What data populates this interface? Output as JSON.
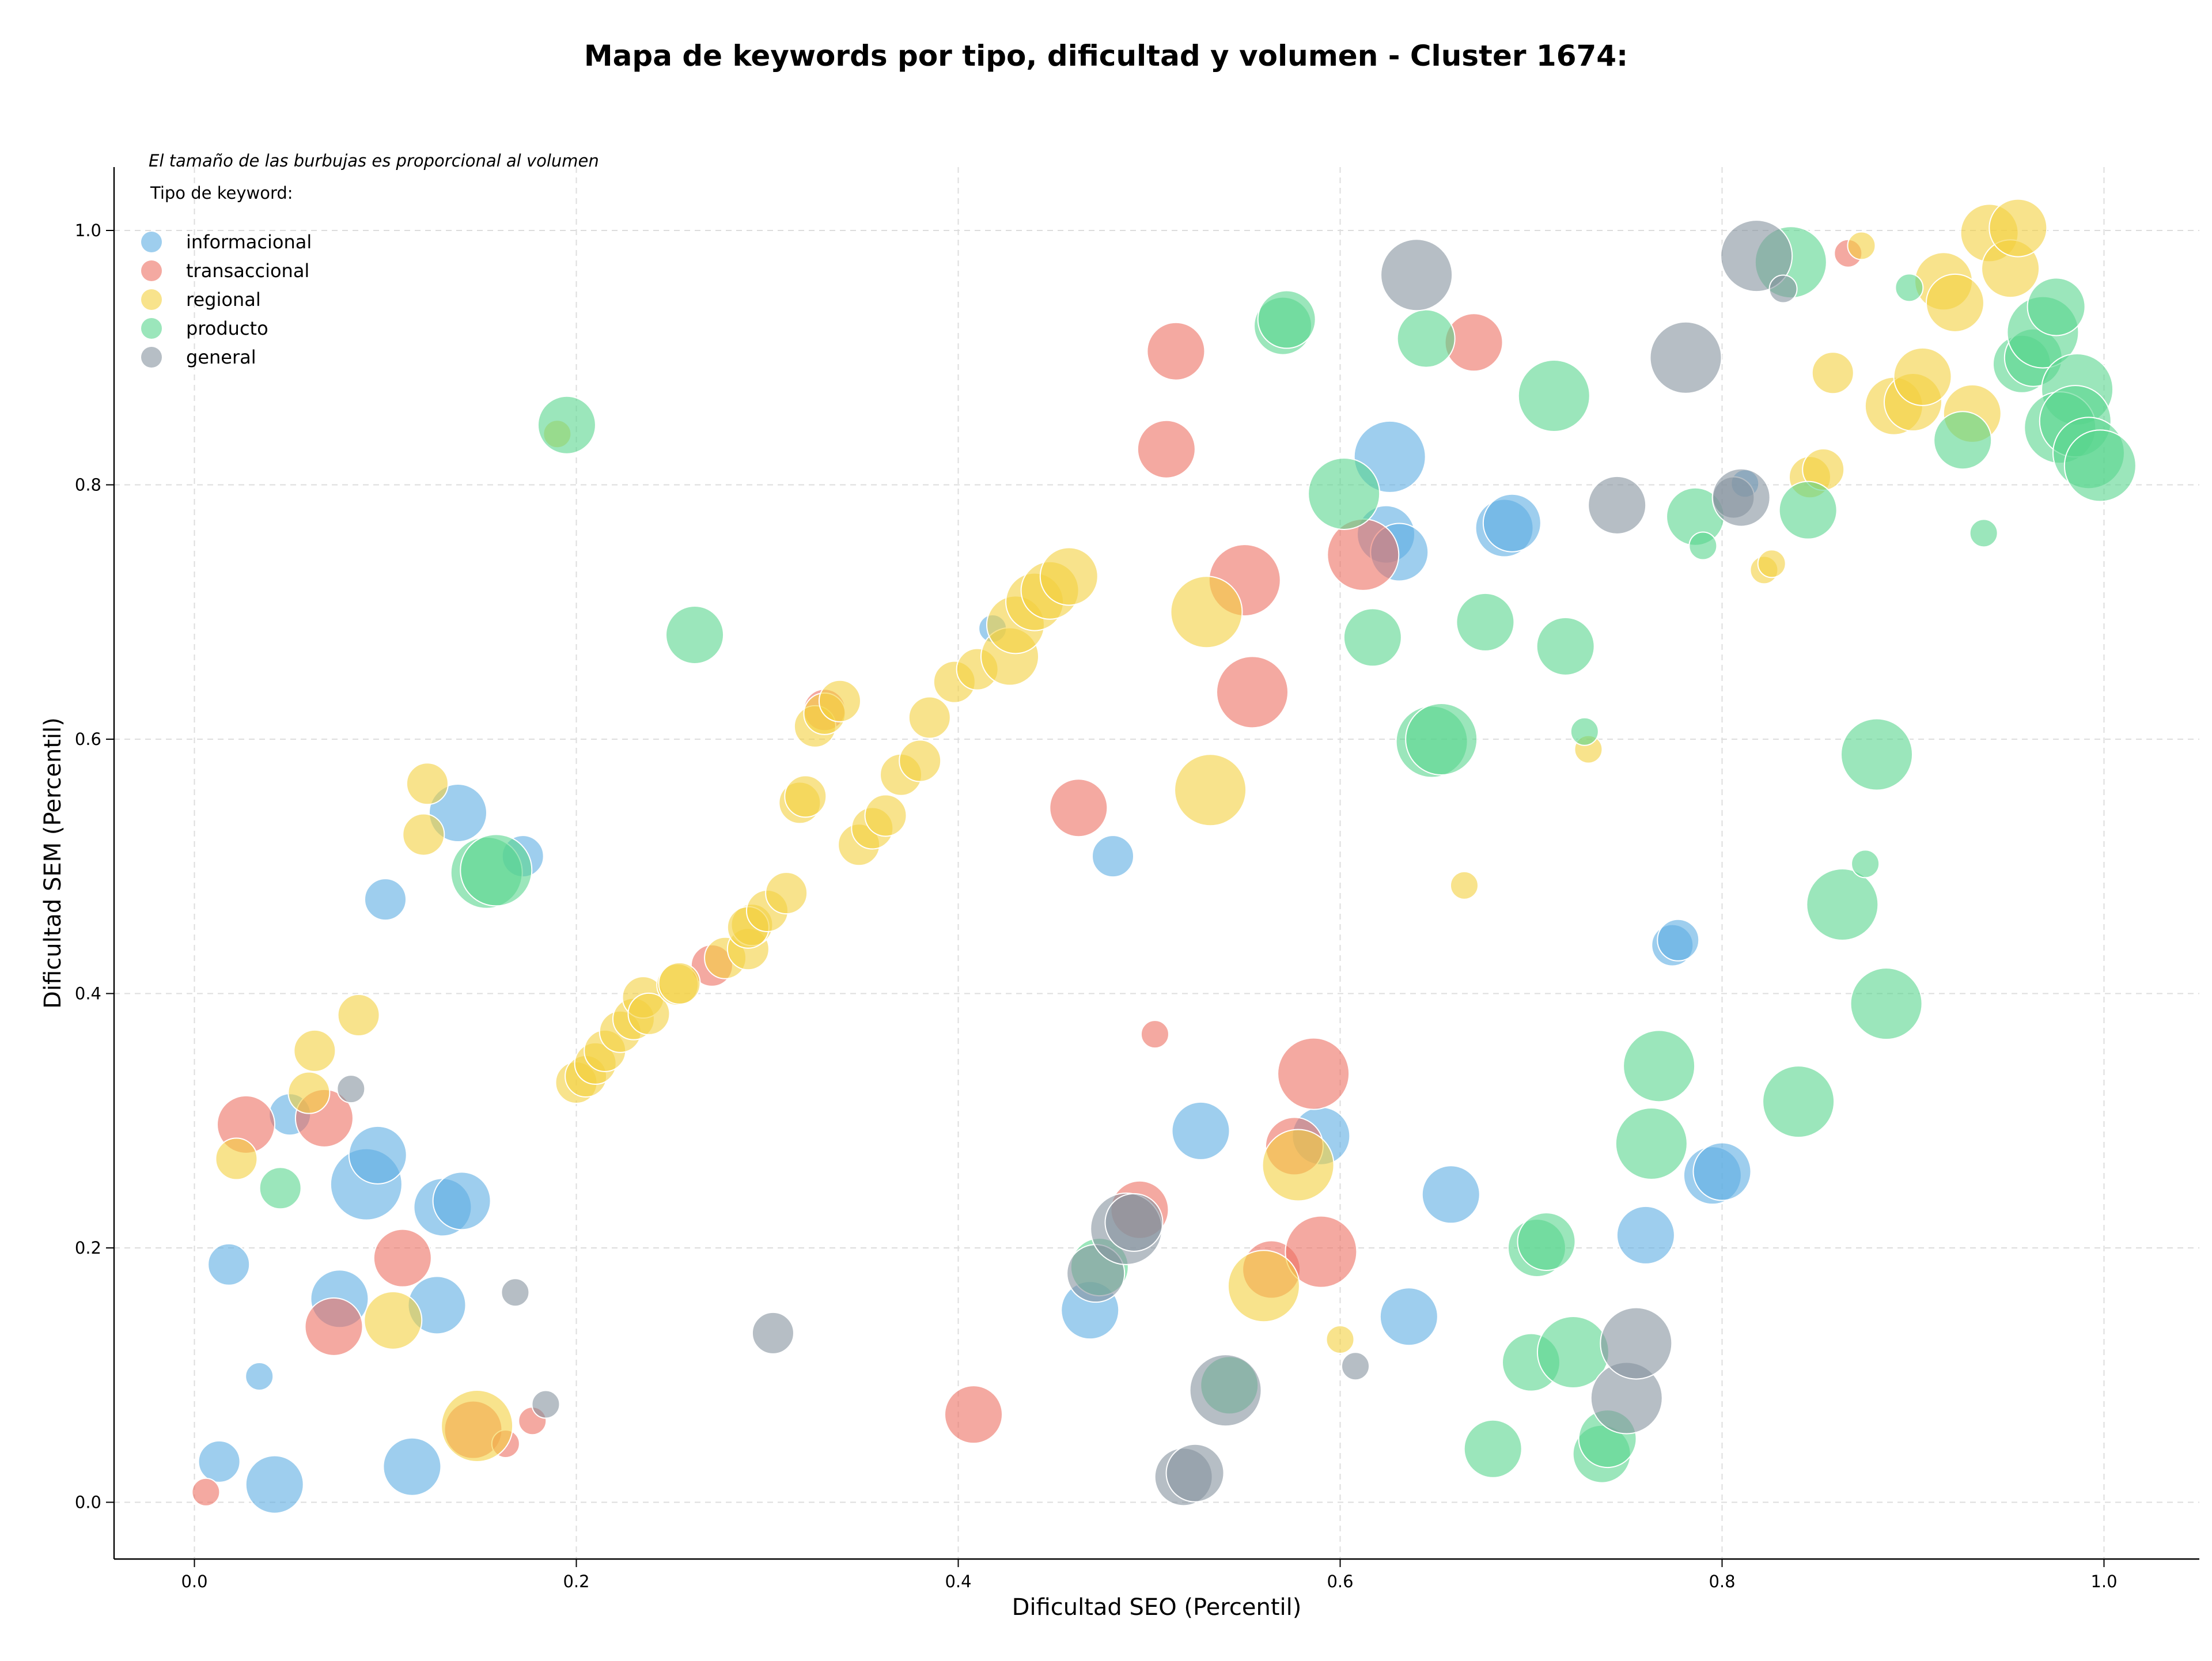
{
  "chart_data": {
    "type": "scatter",
    "title": "Mapa de keywords por tipo, dificultad y volumen - Cluster 1674:",
    "subtitle": "El tamaño de las burbujas es proporcional al volumen",
    "xlabel": "Dificultad SEO (Percentil)",
    "ylabel": "Dificultad SEM (Percentil)",
    "xlim": [
      -0.042,
      1.048
    ],
    "ylim": [
      -0.042,
      1.048
    ],
    "xticks": [
      "0.0",
      "0.2",
      "0.4",
      "0.6",
      "0.8",
      "1.0"
    ],
    "yticks": [
      "0.0",
      "0.2",
      "0.4",
      "0.6",
      "0.8",
      "1.0"
    ],
    "grid": true,
    "legend_title": "Tipo de keyword:",
    "legend_position": "top-left",
    "series": [
      {
        "name": "informacional",
        "color": "#5DADE2",
        "points": [
          [
            0.042,
            0.014,
            3
          ],
          [
            0.013,
            0.032,
            2
          ],
          [
            0.034,
            0.099,
            1
          ],
          [
            0.018,
            0.187,
            2
          ],
          [
            0.076,
            0.16,
            3
          ],
          [
            0.127,
            0.155,
            3
          ],
          [
            0.114,
            0.028,
            3
          ],
          [
            0.09,
            0.25,
            4
          ],
          [
            0.096,
            0.273,
            3
          ],
          [
            0.13,
            0.232,
            3
          ],
          [
            0.14,
            0.237,
            3
          ],
          [
            0.05,
            0.305,
            2
          ],
          [
            0.1,
            0.474,
            2
          ],
          [
            0.138,
            0.542,
            3
          ],
          [
            0.172,
            0.508,
            2
          ],
          [
            0.418,
            0.687,
            1
          ],
          [
            0.481,
            0.508,
            2
          ],
          [
            0.527,
            0.292,
            3
          ],
          [
            0.469,
            0.151,
            3
          ],
          [
            0.59,
            0.288,
            3
          ],
          [
            0.636,
            0.146,
            3
          ],
          [
            0.658,
            0.242,
            3
          ],
          [
            0.626,
            0.822,
            4
          ],
          [
            0.624,
            0.761,
            3
          ],
          [
            0.631,
            0.747,
            3
          ],
          [
            0.686,
            0.766,
            3
          ],
          [
            0.69,
            0.77,
            3
          ],
          [
            0.774,
            0.438,
            2
          ],
          [
            0.777,
            0.442,
            2
          ],
          [
            0.76,
            0.21,
            3
          ],
          [
            0.795,
            0.257,
            3
          ],
          [
            0.8,
            0.26,
            3
          ],
          [
            0.812,
            0.801,
            1
          ]
        ]
      },
      {
        "name": "transaccional",
        "color": "#EC7063",
        "points": [
          [
            0.006,
            0.008,
            1
          ],
          [
            0.027,
            0.297,
            3
          ],
          [
            0.068,
            0.302,
            3
          ],
          [
            0.073,
            0.138,
            3
          ],
          [
            0.109,
            0.192,
            3
          ],
          [
            0.146,
            0.057,
            3
          ],
          [
            0.163,
            0.046,
            1
          ],
          [
            0.177,
            0.064,
            1
          ],
          [
            0.33,
            0.623,
            2
          ],
          [
            0.271,
            0.422,
            2
          ],
          [
            0.408,
            0.069,
            3
          ],
          [
            0.463,
            0.546,
            3
          ],
          [
            0.495,
            0.23,
            3
          ],
          [
            0.503,
            0.368,
            1
          ],
          [
            0.509,
            0.828,
            3
          ],
          [
            0.514,
            0.905,
            3
          ],
          [
            0.55,
            0.725,
            4
          ],
          [
            0.554,
            0.637,
            4
          ],
          [
            0.564,
            0.183,
            3
          ],
          [
            0.576,
            0.28,
            3
          ],
          [
            0.586,
            0.337,
            4
          ],
          [
            0.59,
            0.197,
            4
          ],
          [
            0.612,
            0.745,
            4
          ],
          [
            0.67,
            0.912,
            3
          ],
          [
            0.866,
            0.982,
            1
          ]
        ]
      },
      {
        "name": "regional",
        "color": "#F4D03F",
        "points": [
          [
            0.022,
            0.27,
            2
          ],
          [
            0.06,
            0.322,
            2
          ],
          [
            0.063,
            0.355,
            2
          ],
          [
            0.086,
            0.383,
            2
          ],
          [
            0.104,
            0.143,
            3
          ],
          [
            0.12,
            0.525,
            2
          ],
          [
            0.122,
            0.565,
            2
          ],
          [
            0.148,
            0.06,
            4
          ],
          [
            0.19,
            0.84,
            1
          ],
          [
            0.2,
            0.33,
            2
          ],
          [
            0.205,
            0.335,
            2
          ],
          [
            0.21,
            0.345,
            2
          ],
          [
            0.215,
            0.355,
            2
          ],
          [
            0.223,
            0.37,
            2
          ],
          [
            0.23,
            0.38,
            2
          ],
          [
            0.235,
            0.397,
            2
          ],
          [
            0.238,
            0.384,
            2
          ],
          [
            0.253,
            0.407,
            2
          ],
          [
            0.254,
            0.408,
            2
          ],
          [
            0.278,
            0.428,
            2
          ],
          [
            0.29,
            0.435,
            2
          ],
          [
            0.292,
            0.454,
            2
          ],
          [
            0.29,
            0.452,
            2
          ],
          [
            0.3,
            0.465,
            2
          ],
          [
            0.31,
            0.479,
            2
          ],
          [
            0.317,
            0.55,
            2
          ],
          [
            0.32,
            0.555,
            2
          ],
          [
            0.325,
            0.61,
            2
          ],
          [
            0.33,
            0.62,
            2
          ],
          [
            0.338,
            0.63,
            2
          ],
          [
            0.348,
            0.517,
            2
          ],
          [
            0.355,
            0.53,
            2
          ],
          [
            0.362,
            0.54,
            2
          ],
          [
            0.37,
            0.572,
            2
          ],
          [
            0.38,
            0.583,
            2
          ],
          [
            0.385,
            0.617,
            2
          ],
          [
            0.398,
            0.645,
            2
          ],
          [
            0.41,
            0.655,
            2
          ],
          [
            0.427,
            0.665,
            3
          ],
          [
            0.43,
            0.69,
            3
          ],
          [
            0.44,
            0.708,
            3
          ],
          [
            0.448,
            0.717,
            3
          ],
          [
            0.458,
            0.728,
            3
          ],
          [
            0.53,
            0.7,
            4
          ],
          [
            0.532,
            0.56,
            4
          ],
          [
            0.56,
            0.17,
            4
          ],
          [
            0.578,
            0.265,
            4
          ],
          [
            0.6,
            0.128,
            1
          ],
          [
            0.665,
            0.485,
            1
          ],
          [
            0.73,
            0.592,
            1
          ],
          [
            0.822,
            0.733,
            1
          ],
          [
            0.826,
            0.738,
            1
          ],
          [
            0.846,
            0.806,
            2
          ],
          [
            0.853,
            0.812,
            2
          ],
          [
            0.858,
            0.888,
            2
          ],
          [
            0.873,
            0.988,
            1
          ],
          [
            0.89,
            0.862,
            3
          ],
          [
            0.9,
            0.865,
            3
          ],
          [
            0.905,
            0.885,
            3
          ],
          [
            0.916,
            0.96,
            3
          ],
          [
            0.922,
            0.943,
            3
          ],
          [
            0.931,
            0.856,
            3
          ],
          [
            0.94,
            0.998,
            3
          ],
          [
            0.951,
            0.97,
            3
          ],
          [
            0.955,
            1.002,
            3
          ]
        ]
      },
      {
        "name": "producto",
        "color": "#58D68D",
        "points": [
          [
            0.045,
            0.247,
            2
          ],
          [
            0.153,
            0.495,
            4
          ],
          [
            0.158,
            0.497,
            4
          ],
          [
            0.195,
            0.847,
            3
          ],
          [
            0.262,
            0.682,
            3
          ],
          [
            0.474,
            0.185,
            3
          ],
          [
            0.542,
            0.092,
            3
          ],
          [
            0.57,
            0.925,
            3
          ],
          [
            0.572,
            0.93,
            3
          ],
          [
            0.602,
            0.793,
            4
          ],
          [
            0.617,
            0.68,
            3
          ],
          [
            0.645,
            0.915,
            3
          ],
          [
            0.648,
            0.598,
            4
          ],
          [
            0.653,
            0.6,
            4
          ],
          [
            0.676,
            0.692,
            3
          ],
          [
            0.68,
            0.042,
            3
          ],
          [
            0.7,
            0.11,
            3
          ],
          [
            0.703,
            0.2,
            3
          ],
          [
            0.708,
            0.205,
            3
          ],
          [
            0.712,
            0.87,
            4
          ],
          [
            0.718,
            0.673,
            3
          ],
          [
            0.722,
            0.118,
            4
          ],
          [
            0.728,
            0.606,
            1
          ],
          [
            0.737,
            0.038,
            3
          ],
          [
            0.74,
            0.05,
            3
          ],
          [
            0.763,
            0.282,
            4
          ],
          [
            0.767,
            0.343,
            4
          ],
          [
            0.786,
            0.775,
            3
          ],
          [
            0.79,
            0.752,
            1
          ],
          [
            0.836,
            0.975,
            4
          ],
          [
            0.84,
            0.315,
            4
          ],
          [
            0.845,
            0.78,
            3
          ],
          [
            0.863,
            0.47,
            4
          ],
          [
            0.875,
            0.502,
            1
          ],
          [
            0.881,
            0.588,
            4
          ],
          [
            0.886,
            0.392,
            4
          ],
          [
            0.898,
            0.955,
            1
          ],
          [
            0.926,
            0.835,
            3
          ],
          [
            0.937,
            0.762,
            1
          ],
          [
            0.957,
            0.895,
            3
          ],
          [
            0.963,
            0.9,
            3
          ],
          [
            0.968,
            0.92,
            4
          ],
          [
            0.975,
            0.94,
            3
          ],
          [
            0.986,
            0.875,
            4
          ],
          [
            0.977,
            0.845,
            4
          ],
          [
            0.985,
            0.85,
            4
          ],
          [
            0.992,
            0.825,
            4
          ],
          [
            0.998,
            0.815,
            4
          ]
        ]
      },
      {
        "name": "general",
        "color": "#85929E",
        "points": [
          [
            0.082,
            0.325,
            1
          ],
          [
            0.168,
            0.165,
            1
          ],
          [
            0.184,
            0.077,
            1
          ],
          [
            0.303,
            0.133,
            2
          ],
          [
            0.472,
            0.18,
            3
          ],
          [
            0.488,
            0.215,
            4
          ],
          [
            0.492,
            0.22,
            3
          ],
          [
            0.518,
            0.02,
            3
          ],
          [
            0.524,
            0.023,
            3
          ],
          [
            0.54,
            0.088,
            4
          ],
          [
            0.608,
            0.107,
            1
          ],
          [
            0.64,
            0.965,
            4
          ],
          [
            0.745,
            0.784,
            3
          ],
          [
            0.75,
            0.082,
            4
          ],
          [
            0.755,
            0.125,
            4
          ],
          [
            0.781,
            0.9,
            4
          ],
          [
            0.806,
            0.79,
            2
          ],
          [
            0.81,
            0.79,
            3
          ],
          [
            0.818,
            0.98,
            4
          ],
          [
            0.832,
            0.954,
            1
          ]
        ]
      }
    ]
  }
}
